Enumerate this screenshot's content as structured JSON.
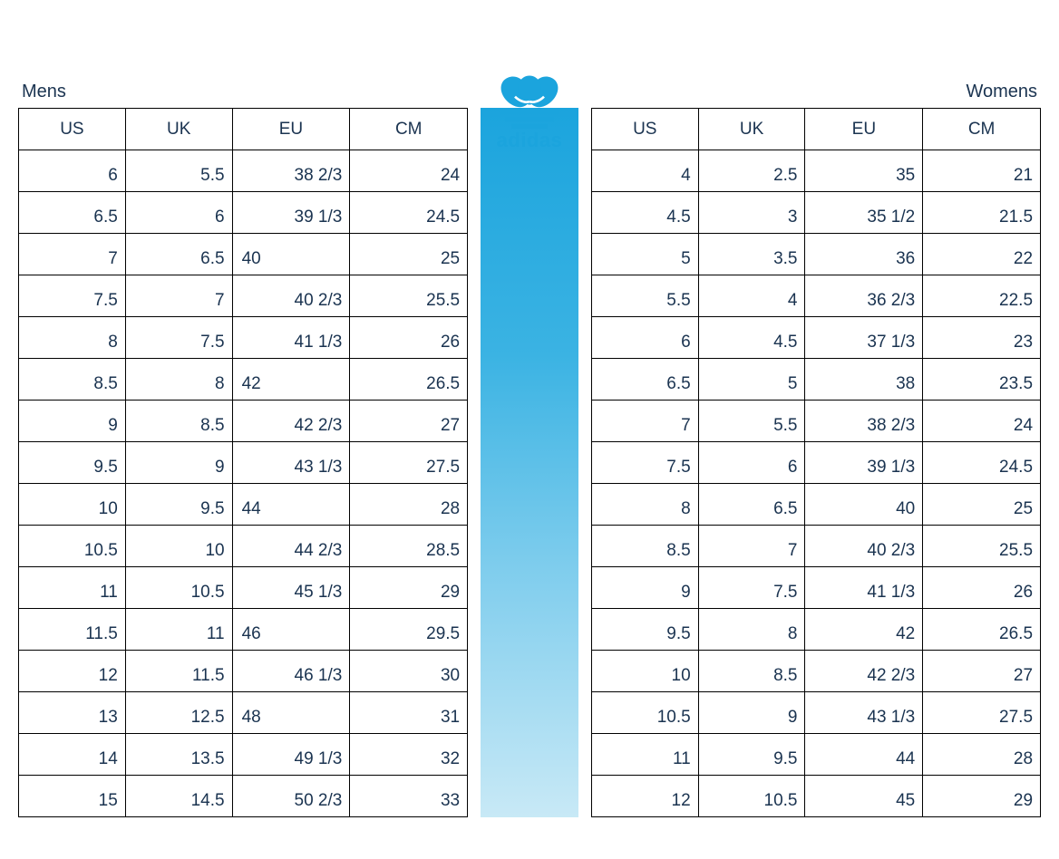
{
  "brand": {
    "name": "adidas",
    "primary_color": "#1ba4dd",
    "gradient_top": "#1ba4dd",
    "gradient_bottom": "#c8e9f6"
  },
  "labels": {
    "mens": "Mens",
    "womens": "Womens"
  },
  "columns": [
    "US",
    "UK",
    "EU",
    "CM"
  ],
  "mens": {
    "rows": [
      {
        "us": "6",
        "uk": "5.5",
        "eu": "38 2/3",
        "cm": "24",
        "eu_align": "right"
      },
      {
        "us": "6.5",
        "uk": "6",
        "eu": "39 1/3",
        "cm": "24.5",
        "eu_align": "right"
      },
      {
        "us": "7",
        "uk": "6.5",
        "eu": "40",
        "cm": "25",
        "eu_align": "left"
      },
      {
        "us": "7.5",
        "uk": "7",
        "eu": "40 2/3",
        "cm": "25.5",
        "eu_align": "right"
      },
      {
        "us": "8",
        "uk": "7.5",
        "eu": "41 1/3",
        "cm": "26",
        "eu_align": "right"
      },
      {
        "us": "8.5",
        "uk": "8",
        "eu": "42",
        "cm": "26.5",
        "eu_align": "left"
      },
      {
        "us": "9",
        "uk": "8.5",
        "eu": "42 2/3",
        "cm": "27",
        "eu_align": "right"
      },
      {
        "us": "9.5",
        "uk": "9",
        "eu": "43 1/3",
        "cm": "27.5",
        "eu_align": "right"
      },
      {
        "us": "10",
        "uk": "9.5",
        "eu": "44",
        "cm": "28",
        "eu_align": "left"
      },
      {
        "us": "10.5",
        "uk": "10",
        "eu": "44 2/3",
        "cm": "28.5",
        "eu_align": "right"
      },
      {
        "us": "11",
        "uk": "10.5",
        "eu": "45 1/3",
        "cm": "29",
        "eu_align": "right"
      },
      {
        "us": "11.5",
        "uk": "11",
        "eu": "46",
        "cm": "29.5",
        "eu_align": "left"
      },
      {
        "us": "12",
        "uk": "11.5",
        "eu": "46 1/3",
        "cm": "30",
        "eu_align": "right"
      },
      {
        "us": "13",
        "uk": "12.5",
        "eu": "48",
        "cm": "31",
        "eu_align": "left"
      },
      {
        "us": "14",
        "uk": "13.5",
        "eu": "49 1/3",
        "cm": "32",
        "eu_align": "right"
      },
      {
        "us": "15",
        "uk": "14.5",
        "eu": "50 2/3",
        "cm": "33",
        "eu_align": "right"
      }
    ]
  },
  "womens": {
    "rows": [
      {
        "us": "4",
        "uk": "2.5",
        "eu": "35",
        "cm": "21",
        "eu_align": "right"
      },
      {
        "us": "4.5",
        "uk": "3",
        "eu": "35 1/2",
        "cm": "21.5",
        "eu_align": "right"
      },
      {
        "us": "5",
        "uk": "3.5",
        "eu": "36",
        "cm": "22",
        "eu_align": "right"
      },
      {
        "us": "5.5",
        "uk": "4",
        "eu": "36 2/3",
        "cm": "22.5",
        "eu_align": "right"
      },
      {
        "us": "6",
        "uk": "4.5",
        "eu": "37 1/3",
        "cm": "23",
        "eu_align": "right"
      },
      {
        "us": "6.5",
        "uk": "5",
        "eu": "38",
        "cm": "23.5",
        "eu_align": "right"
      },
      {
        "us": "7",
        "uk": "5.5",
        "eu": "38 2/3",
        "cm": "24",
        "eu_align": "right"
      },
      {
        "us": "7.5",
        "uk": "6",
        "eu": "39 1/3",
        "cm": "24.5",
        "eu_align": "right"
      },
      {
        "us": "8",
        "uk": "6.5",
        "eu": "40",
        "cm": "25",
        "eu_align": "right"
      },
      {
        "us": "8.5",
        "uk": "7",
        "eu": "40 2/3",
        "cm": "25.5",
        "eu_align": "right"
      },
      {
        "us": "9",
        "uk": "7.5",
        "eu": "41 1/3",
        "cm": "26",
        "eu_align": "right"
      },
      {
        "us": "9.5",
        "uk": "8",
        "eu": "42",
        "cm": "26.5",
        "eu_align": "right"
      },
      {
        "us": "10",
        "uk": "8.5",
        "eu": "42 2/3",
        "cm": "27",
        "eu_align": "right"
      },
      {
        "us": "10.5",
        "uk": "9",
        "eu": "43 1/3",
        "cm": "27.5",
        "eu_align": "right"
      },
      {
        "us": "11",
        "uk": "9.5",
        "eu": "44",
        "cm": "28",
        "eu_align": "right"
      },
      {
        "us": "12",
        "uk": "10.5",
        "eu": "45",
        "cm": "29",
        "eu_align": "right"
      }
    ]
  }
}
